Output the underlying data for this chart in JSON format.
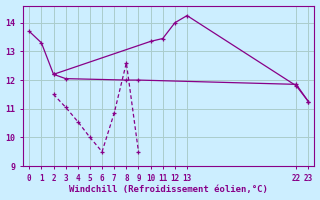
{
  "xlabel": "Windchill (Refroidissement éolien,°C)",
  "background_color": "#cceeff",
  "grid_color": "#aacccc",
  "line_color": "#880088",
  "xlim": [
    -0.5,
    23.5
  ],
  "ylim": [
    9,
    14.6
  ],
  "yticks": [
    9,
    10,
    11,
    12,
    13,
    14
  ],
  "xtick_positions": [
    0,
    1,
    2,
    3,
    4,
    5,
    6,
    7,
    8,
    9,
    10,
    11,
    12,
    13,
    22,
    23
  ],
  "xtick_labels": [
    "0",
    "1",
    "2",
    "3",
    "4",
    "5",
    "6",
    "7",
    "8",
    "9",
    "10",
    "11",
    "12",
    "13",
    "22",
    "23"
  ],
  "line1_x": [
    0,
    1,
    2,
    10,
    11,
    12,
    13,
    22,
    23
  ],
  "line1_y": [
    13.7,
    13.3,
    12.2,
    13.35,
    13.45,
    14.0,
    14.25,
    11.8,
    11.25
  ],
  "line2_x": [
    2,
    3,
    8,
    9,
    22,
    23
  ],
  "line2_y": [
    12.2,
    12.05,
    12.0,
    12.0,
    11.85,
    11.25
  ],
  "line3_x": [
    2,
    3,
    4,
    5,
    6,
    7,
    8,
    9
  ],
  "line3_y": [
    11.5,
    11.05,
    10.55,
    10.0,
    9.5,
    10.85,
    12.6,
    9.5
  ]
}
